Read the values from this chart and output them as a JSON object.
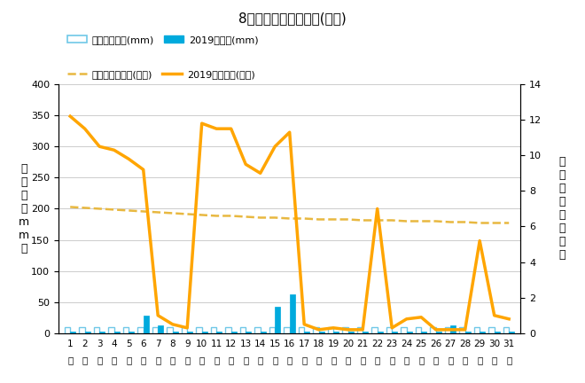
{
  "title": "8月降水量・日照時間(日別)",
  "days": [
    1,
    2,
    3,
    4,
    5,
    6,
    7,
    8,
    9,
    10,
    11,
    12,
    13,
    14,
    15,
    16,
    17,
    18,
    19,
    20,
    21,
    22,
    23,
    24,
    25,
    26,
    27,
    28,
    29,
    30,
    31
  ],
  "day_labels": [
    "1",
    "2",
    "3",
    "4",
    "5",
    "6",
    "7",
    "8",
    "9",
    "10",
    "11",
    "12",
    "13",
    "14",
    "15",
    "16",
    "17",
    "18",
    "19",
    "20",
    "21",
    "22",
    "23",
    "24",
    "25",
    "26",
    "27",
    "28",
    "29",
    "30",
    "31"
  ],
  "precip_avg": [
    10,
    10,
    10,
    10,
    10,
    10,
    10,
    10,
    10,
    10,
    10,
    10,
    10,
    10,
    10,
    10,
    10,
    10,
    10,
    10,
    10,
    10,
    10,
    10,
    10,
    10,
    10,
    10,
    10,
    10,
    10
  ],
  "precip_2019": [
    3,
    3,
    3,
    3,
    3,
    28,
    13,
    3,
    3,
    3,
    3,
    3,
    3,
    3,
    42,
    62,
    3,
    3,
    3,
    3,
    3,
    3,
    3,
    3,
    3,
    3,
    13,
    3,
    3,
    3,
    3
  ],
  "sunshine_avg": [
    7.1,
    7.05,
    7.0,
    6.95,
    6.9,
    6.85,
    6.8,
    6.75,
    6.7,
    6.65,
    6.6,
    6.6,
    6.55,
    6.5,
    6.5,
    6.45,
    6.45,
    6.4,
    6.4,
    6.4,
    6.35,
    6.35,
    6.35,
    6.3,
    6.3,
    6.3,
    6.25,
    6.25,
    6.2,
    6.2,
    6.2
  ],
  "sunshine_2019": [
    12.2,
    11.5,
    10.5,
    10.3,
    9.8,
    9.2,
    1.0,
    0.5,
    0.3,
    11.8,
    11.5,
    11.5,
    9.5,
    9.0,
    10.5,
    11.3,
    0.5,
    0.2,
    0.3,
    0.2,
    0.2,
    7.0,
    0.3,
    0.8,
    0.9,
    0.2,
    0.2,
    0.2,
    5.2,
    1.0,
    0.8
  ],
  "precip_avg_color": "#70c8e8",
  "precip_2019_color": "#00aadd",
  "sunshine_avg_color": "#e8b840",
  "sunshine_2019_color": "#ffa500",
  "ylabel_left": "降\n水\n量\n（\nm\nm\n）",
  "ylabel_right": "日\n照\n時\n間\n（\n時\n間\n）",
  "ylim_left": [
    0,
    400
  ],
  "ylim_right": [
    0,
    14
  ],
  "yticks_left": [
    0,
    50,
    100,
    150,
    200,
    250,
    300,
    350,
    400
  ],
  "yticks_right": [
    0,
    2,
    4,
    6,
    8,
    10,
    12,
    14
  ],
  "legend1": "降水量平年値(mm)",
  "legend2": "2019降水量(mm)",
  "legend3": "日照時間平年値(時間)",
  "legend4": "2019日照時間(時間)"
}
